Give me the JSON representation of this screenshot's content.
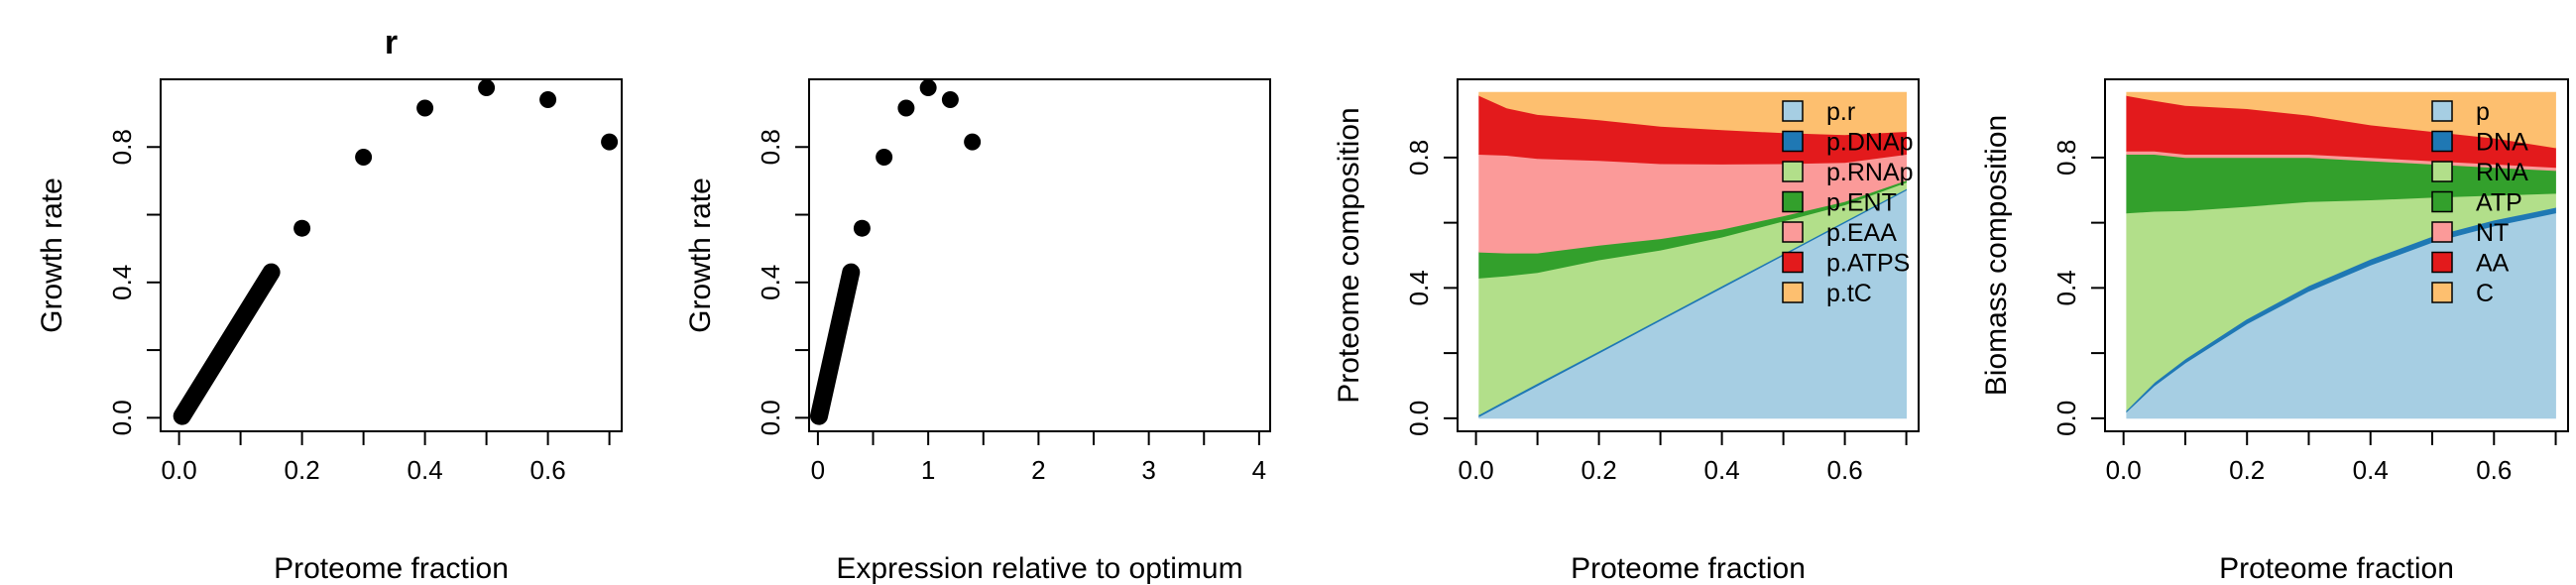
{
  "chart_data": [
    {
      "type": "scatter",
      "title": "r",
      "xlabel": "Proteome fraction",
      "ylabel": "Growth rate",
      "xlim": [
        -0.03,
        0.72
      ],
      "ylim": [
        -0.04,
        1.0
      ],
      "xticks": [
        0.0,
        0.2,
        0.4,
        0.6
      ],
      "xtick_labels": [
        "0.0",
        "0.2",
        "0.4",
        "0.6"
      ],
      "xtick_marks": [
        0.0,
        0.1,
        0.2,
        0.3,
        0.4,
        0.5,
        0.6,
        0.7
      ],
      "yticks": [
        0.0,
        0.4,
        0.8
      ],
      "ytick_labels": [
        "0.0",
        "0.4",
        "0.8"
      ],
      "ytick_marks": [
        0.0,
        0.2,
        0.4,
        0.6,
        0.8
      ],
      "series": [
        {
          "line": {
            "x": [
              0.005,
              0.15
            ],
            "y": [
              0.005,
              0.43
            ]
          },
          "points": {
            "x": [
              0.2,
              0.3,
              0.4,
              0.5,
              0.6,
              0.7
            ],
            "y": [
              0.56,
              0.77,
              0.915,
              0.975,
              0.94,
              0.815
            ]
          }
        }
      ]
    },
    {
      "type": "scatter",
      "title": "",
      "xlabel": "Expression relative to optimum",
      "ylabel": "Growth rate",
      "xlim": [
        -0.08,
        4.1
      ],
      "ylim": [
        -0.04,
        1.0
      ],
      "xticks": [
        0,
        1,
        2,
        3,
        4
      ],
      "xtick_labels": [
        "0",
        "1",
        "2",
        "3",
        "4"
      ],
      "xtick_marks": [
        0,
        0.5,
        1,
        1.5,
        2,
        2.5,
        3,
        3.5,
        4
      ],
      "yticks": [
        0.0,
        0.4,
        0.8
      ],
      "ytick_labels": [
        "0.0",
        "0.4",
        "0.8"
      ],
      "ytick_marks": [
        0.0,
        0.2,
        0.4,
        0.6,
        0.8
      ],
      "series": [
        {
          "line": {
            "x": [
              0.01,
              0.3
            ],
            "y": [
              0.005,
              0.43
            ]
          },
          "points": {
            "x": [
              0.4,
              0.6,
              0.8,
              1.0,
              1.2,
              1.4
            ],
            "y": [
              0.56,
              0.77,
              0.915,
              0.975,
              0.94,
              0.815
            ]
          }
        }
      ]
    },
    {
      "type": "area",
      "title": "",
      "xlabel": "Proteome fraction",
      "ylabel": "Proteome composition",
      "xlim": [
        -0.03,
        0.72
      ],
      "ylim": [
        -0.04,
        1.04
      ],
      "xticks": [
        0.0,
        0.2,
        0.4,
        0.6
      ],
      "xtick_labels": [
        "0.0",
        "0.2",
        "0.4",
        "0.6"
      ],
      "xtick_marks": [
        0.0,
        0.1,
        0.2,
        0.3,
        0.4,
        0.5,
        0.6,
        0.7
      ],
      "yticks": [
        0.0,
        0.4,
        0.8
      ],
      "ytick_labels": [
        "0.0",
        "0.4",
        "0.8"
      ],
      "ytick_marks": [
        0.0,
        0.2,
        0.4,
        0.6,
        0.8
      ],
      "legend": "top-right",
      "x": [
        0.005,
        0.05,
        0.1,
        0.2,
        0.3,
        0.4,
        0.5,
        0.6,
        0.7
      ],
      "series": [
        {
          "name": "p.r",
          "color": "#a6cee3",
          "values": [
            0.005,
            0.05,
            0.1,
            0.2,
            0.3,
            0.4,
            0.5,
            0.6,
            0.7
          ]
        },
        {
          "name": "p.DNAp",
          "color": "#1f78b4",
          "values": [
            0.006,
            0.007,
            0.007,
            0.006,
            0.006,
            0.006,
            0.005,
            0.005,
            0.004
          ]
        },
        {
          "name": "p.RNAp",
          "color": "#b2df8a",
          "values": [
            0.419,
            0.38,
            0.34,
            0.28,
            0.21,
            0.15,
            0.1,
            0.05,
            0.02
          ]
        },
        {
          "name": "p.ENT",
          "color": "#33a02c",
          "values": [
            0.08,
            0.07,
            0.06,
            0.045,
            0.035,
            0.024,
            0.016,
            0.01,
            0.006
          ]
        },
        {
          "name": "p.EAA",
          "color": "#fb9a99",
          "values": [
            0.3,
            0.3,
            0.29,
            0.26,
            0.23,
            0.2,
            0.16,
            0.12,
            0.08
          ]
        },
        {
          "name": "p.ATPS",
          "color": "#e31a1c",
          "values": [
            0.18,
            0.145,
            0.135,
            0.125,
            0.115,
            0.105,
            0.095,
            0.085,
            0.07
          ]
        },
        {
          "name": "p.tC",
          "color": "#fdbf6f",
          "values": [
            0.01,
            0.048,
            0.068,
            0.084,
            0.104,
            0.115,
            0.124,
            0.13,
            0.12
          ]
        }
      ]
    },
    {
      "type": "area",
      "title": "",
      "xlabel": "Proteome fraction",
      "ylabel": "Biomass composition",
      "xlim": [
        -0.03,
        0.72
      ],
      "ylim": [
        -0.04,
        1.04
      ],
      "xticks": [
        0.0,
        0.2,
        0.4,
        0.6
      ],
      "xtick_labels": [
        "0.0",
        "0.2",
        "0.4",
        "0.6"
      ],
      "xtick_marks": [
        0.0,
        0.1,
        0.2,
        0.3,
        0.4,
        0.5,
        0.6,
        0.7
      ],
      "yticks": [
        0.0,
        0.4,
        0.8
      ],
      "ytick_labels": [
        "0.0",
        "0.4",
        "0.8"
      ],
      "ytick_marks": [
        0.0,
        0.2,
        0.4,
        0.6,
        0.8
      ],
      "legend": "top-right",
      "x": [
        0.005,
        0.05,
        0.1,
        0.2,
        0.3,
        0.4,
        0.5,
        0.6,
        0.7
      ],
      "series": [
        {
          "name": "p",
          "color": "#a6cee3",
          "values": [
            0.02,
            0.1,
            0.17,
            0.29,
            0.39,
            0.47,
            0.54,
            0.59,
            0.63
          ]
        },
        {
          "name": "DNA",
          "color": "#1f78b4",
          "values": [
            0.005,
            0.01,
            0.012,
            0.015,
            0.017,
            0.018,
            0.018,
            0.018,
            0.017
          ]
        },
        {
          "name": "RNA",
          "color": "#b2df8a",
          "values": [
            0.605,
            0.525,
            0.455,
            0.345,
            0.258,
            0.182,
            0.12,
            0.076,
            0.043
          ]
        },
        {
          "name": "ATP",
          "color": "#33a02c",
          "values": [
            0.18,
            0.175,
            0.163,
            0.15,
            0.135,
            0.12,
            0.102,
            0.086,
            0.07
          ]
        },
        {
          "name": "NT",
          "color": "#fb9a99",
          "values": [
            0.01,
            0.01,
            0.01,
            0.01,
            0.01,
            0.01,
            0.01,
            0.01,
            0.01
          ]
        },
        {
          "name": "AA",
          "color": "#e31a1c",
          "values": [
            0.17,
            0.155,
            0.15,
            0.14,
            0.12,
            0.1,
            0.09,
            0.08,
            0.06
          ]
        },
        {
          "name": "C",
          "color": "#fdbf6f",
          "values": [
            0.01,
            0.025,
            0.04,
            0.05,
            0.07,
            0.1,
            0.12,
            0.14,
            0.17
          ]
        }
      ]
    }
  ]
}
